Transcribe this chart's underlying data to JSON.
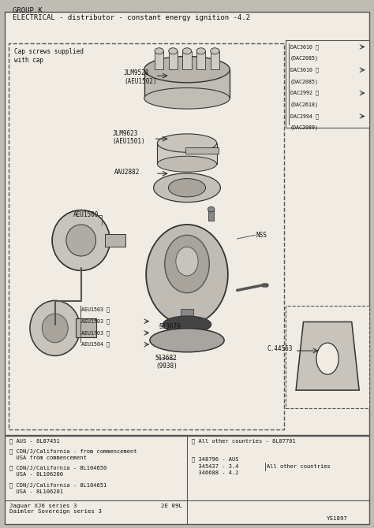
{
  "bg_color": "#bfbcb3",
  "drawing_bg": "#f0ece4",
  "title_line1": "GROUP K",
  "title_line2": "ELECTRICAL - distributor - constant energy ignition -4.2",
  "footer_box_entries": [
    "① AUS - 8L87451",
    "② CDN/J/California - from commencement\n  USA from commencement",
    "③ CDN/J/California - 8L104650\n  USA - 8L106200",
    "④ CDN/J/California - 8L104651\n  USA - 8L106201"
  ],
  "footer_right_line1": "⑤ All other countries - 8L87701",
  "footer_right_line2": "⑥ 348796 - AUS",
  "footer_right_line3": "  345437 - 3.4",
  "footer_right_line4": "  346688 - 4.2",
  "footer_right_line5": "All other countries",
  "footer_bottom_left": "Jaguar XJ6 series 3\nDaimler Sovereign series 3",
  "footer_bottom_mid": "2E 09L",
  "footer_bottom_right": "YS1897",
  "parts_labels_top_right": [
    "DAC3010 ①",
    "(DAC2085)",
    "DAC3010 ②",
    "(DAC2085)",
    "DAC2992 ④",
    "(DAC2618)",
    "DAC2994 ⑤",
    "(DAC2089)"
  ],
  "parts_labels_bottom_left": [
    "AEU1503 ①",
    "AEU1503 ②",
    "AEU1703 ④",
    "AEU1504 ⑤"
  ],
  "font_color": "#111111",
  "mono_font": "monospace",
  "edge_color": "#333333",
  "mid_color": "#555555",
  "shape_fill_light": "#c8c4bc",
  "shape_fill_mid": "#a8a49c",
  "shape_fill_dark": "#888888"
}
